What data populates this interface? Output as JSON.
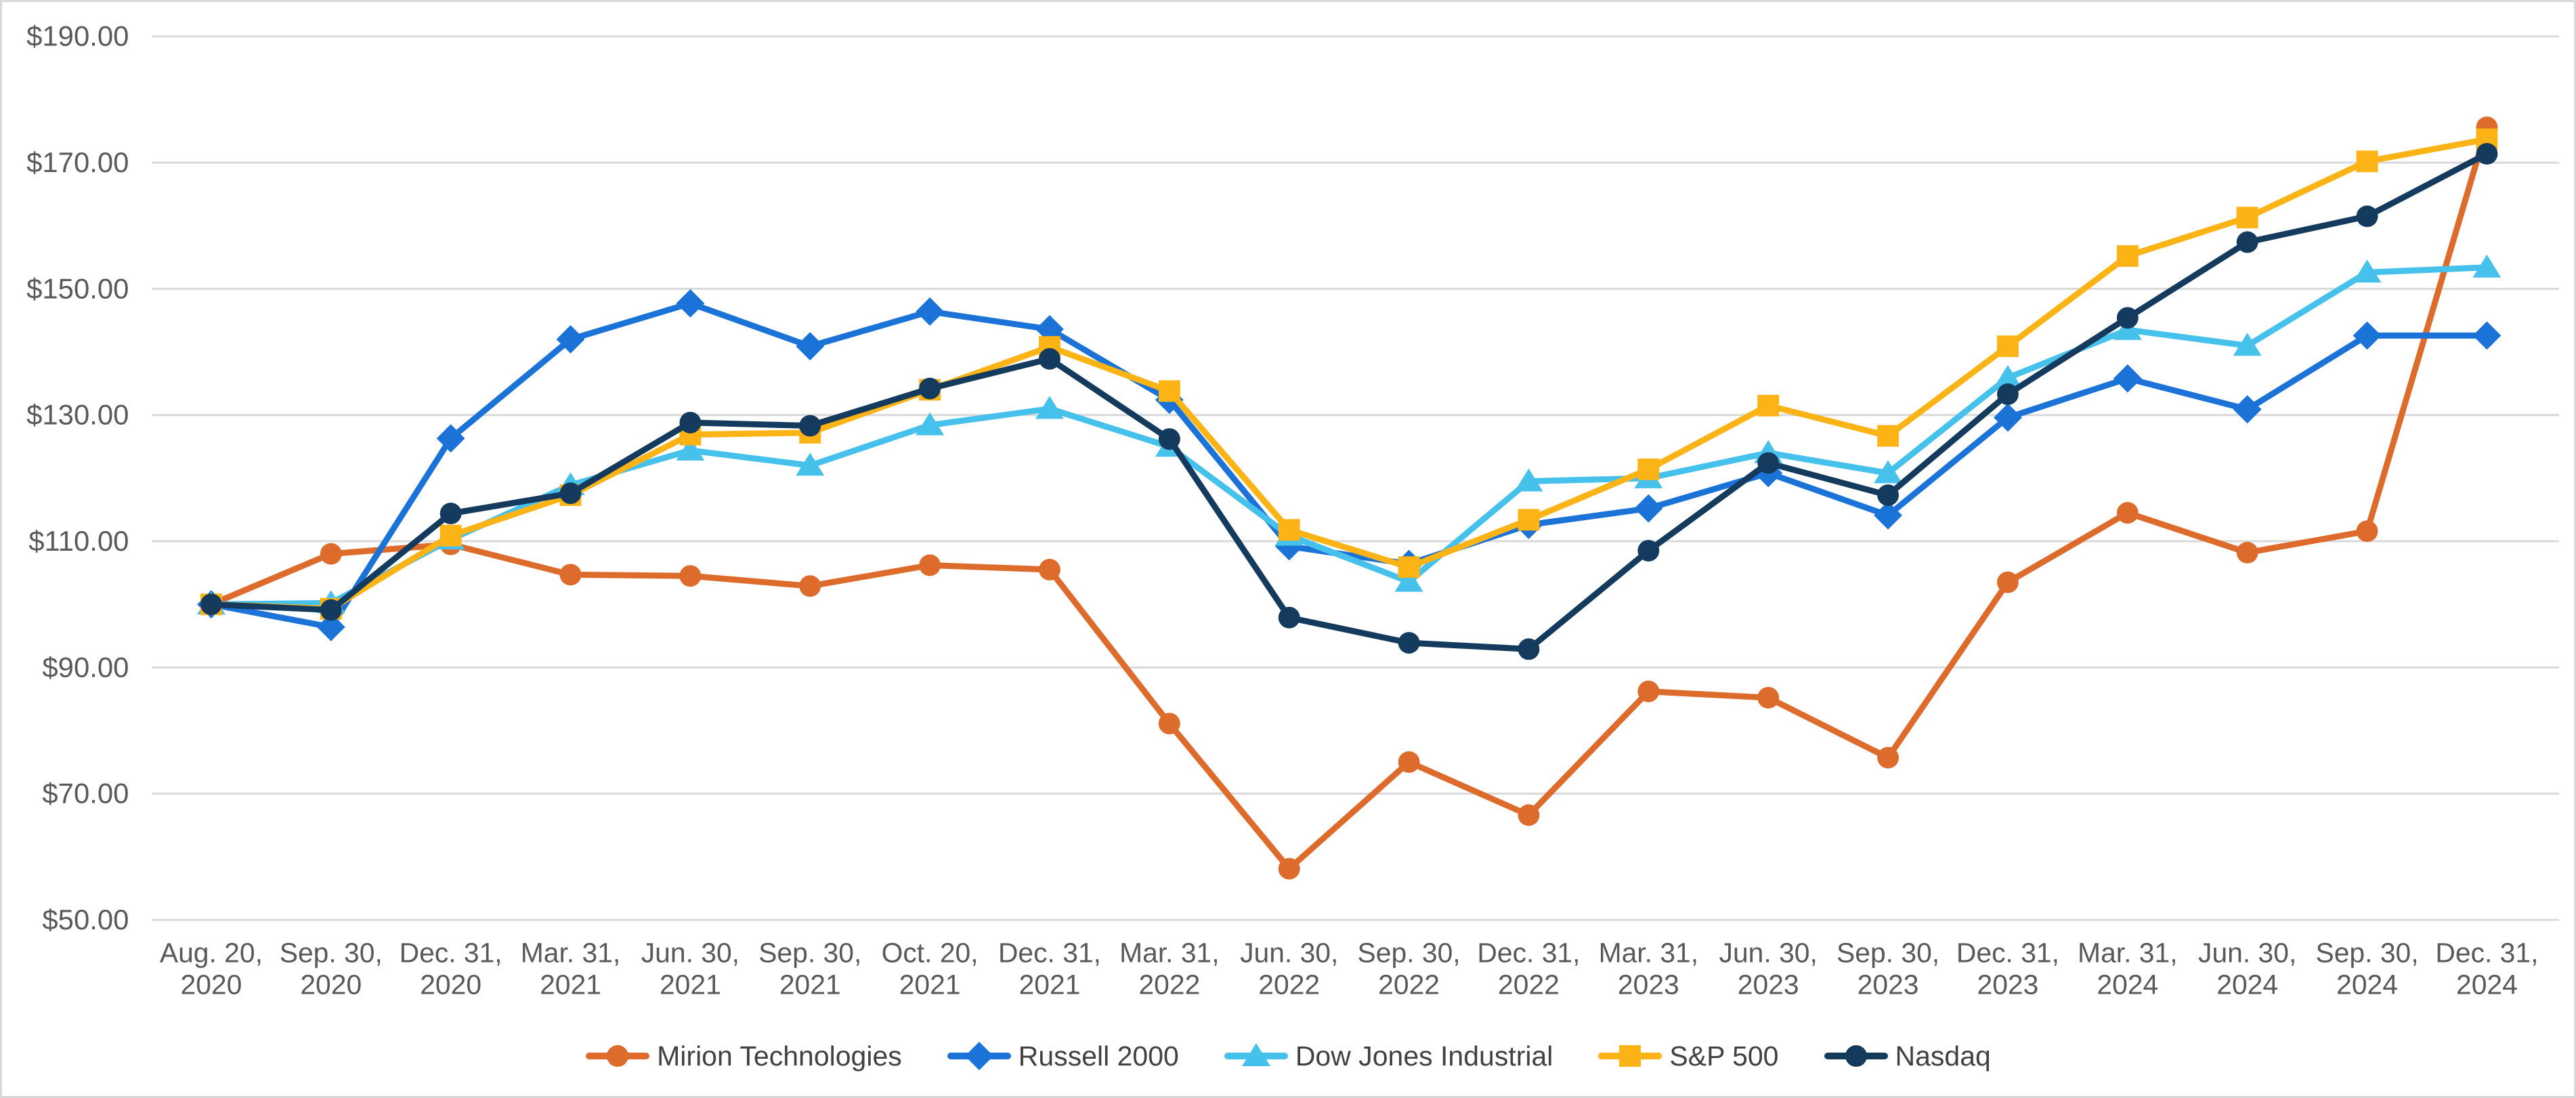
{
  "chart_data": {
    "type": "line",
    "title": "",
    "xlabel": "",
    "ylabel": "",
    "grid": true,
    "legend_position": "bottom",
    "y_axis": {
      "min": 50,
      "max": 190,
      "step": 20,
      "labels": [
        "$190.00",
        "$170.00",
        "$150.00",
        "$130.00",
        "$110.00",
        "$90.00",
        "$70.00",
        "$50.00"
      ]
    },
    "x_categories": [
      [
        "Aug. 20,",
        "2020"
      ],
      [
        "Sep. 30,",
        "2020"
      ],
      [
        "Dec. 31,",
        "2020"
      ],
      [
        "Mar. 31,",
        "2021"
      ],
      [
        "Jun. 30,",
        "2021"
      ],
      [
        "Sep. 30,",
        "2021"
      ],
      [
        "Oct. 20,",
        "2021"
      ],
      [
        "Dec. 31,",
        "2021"
      ],
      [
        "Mar. 31,",
        "2022"
      ],
      [
        "Jun. 30,",
        "2022"
      ],
      [
        "Sep. 30,",
        "2022"
      ],
      [
        "Dec. 31,",
        "2022"
      ],
      [
        "Mar. 31,",
        "2023"
      ],
      [
        "Jun. 30,",
        "2023"
      ],
      [
        "Sep. 30,",
        "2023"
      ],
      [
        "Dec. 31,",
        "2023"
      ],
      [
        "Mar. 31,",
        "2024"
      ],
      [
        "Jun. 30,",
        "2024"
      ],
      [
        "Sep. 30,",
        "2024"
      ],
      [
        "Dec. 31,",
        "2024"
      ]
    ],
    "series": [
      {
        "name": "Mirion Technologies",
        "color": "#DC6B2C",
        "marker": "circle",
        "values": [
          100.0,
          108.0,
          109.5,
          104.7,
          104.5,
          102.9,
          106.2,
          105.5,
          81.1,
          58.1,
          75.0,
          66.6,
          86.2,
          85.2,
          75.7,
          103.5,
          114.5,
          108.2,
          111.6,
          175.6
        ]
      },
      {
        "name": "Russell 2000",
        "color": "#1B73D8",
        "marker": "diamond",
        "values": [
          100.0,
          96.4,
          126.3,
          142.0,
          147.7,
          140.9,
          146.4,
          143.6,
          132.4,
          109.2,
          106.4,
          112.6,
          115.2,
          120.8,
          114.1,
          129.6,
          135.8,
          130.9,
          142.6,
          142.6
        ]
      },
      {
        "name": "Dow Jones Industrial",
        "color": "#45C1EC",
        "marker": "triangle",
        "values": [
          100.0,
          100.2,
          110.3,
          118.9,
          124.4,
          122.0,
          128.4,
          131.0,
          125.0,
          110.9,
          103.6,
          119.5,
          120.0,
          124.0,
          120.8,
          135.9,
          143.5,
          141.0,
          152.6,
          153.4
        ]
      },
      {
        "name": "S&P 500",
        "color": "#FBB315",
        "marker": "square",
        "values": [
          100.0,
          99.3,
          110.9,
          117.3,
          126.9,
          127.2,
          134.0,
          140.8,
          133.8,
          111.8,
          105.9,
          113.4,
          121.4,
          131.5,
          126.7,
          140.9,
          155.2,
          161.3,
          170.2,
          173.7
        ]
      },
      {
        "name": "Nasdaq",
        "color": "#143A5E",
        "marker": "circle",
        "values": [
          100.0,
          99.1,
          114.4,
          117.6,
          128.8,
          128.3,
          134.2,
          138.9,
          126.2,
          97.9,
          93.9,
          92.9,
          108.5,
          122.4,
          117.3,
          133.3,
          145.4,
          157.4,
          161.5,
          171.4
        ]
      }
    ]
  }
}
